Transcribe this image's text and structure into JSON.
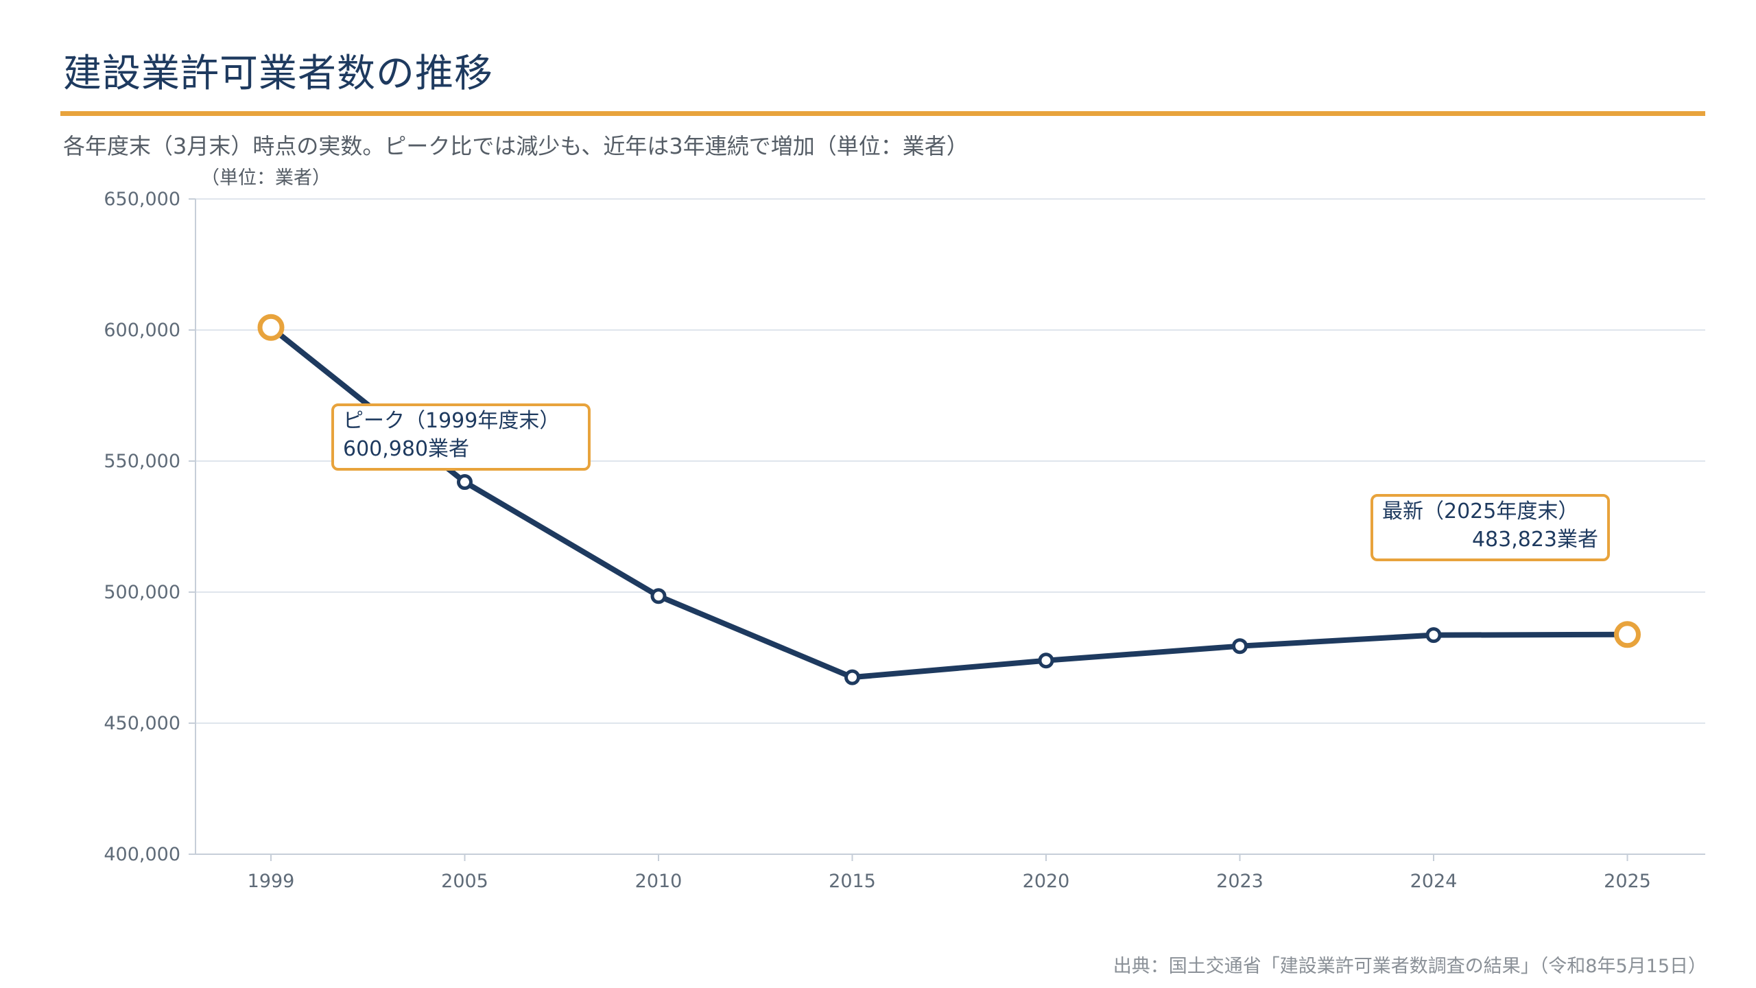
{
  "header": {
    "title": "建設業許可業者数の推移",
    "subtitle": "各年度末（3月末）時点の実数。ピーク比では減少も、近年は3年連続で増加（単位：業者）"
  },
  "footer": {
    "source": "出典：国土交通省「建設業許可業者数調査の結果」（令和8年5月15日）"
  },
  "colors": {
    "line": "#1e3a5f",
    "accent": "#e8a33c",
    "grid": "#dfe5ec",
    "axis": "#c6ced8"
  },
  "chart_data": {
    "type": "line",
    "title": "建設業許可業者数の推移",
    "subtitle": "各年度末（3月末）時点の実数。ピーク比では減少も、近年は3年連続で増加（単位：業者）",
    "ylabel": "（単位：業者）",
    "xlabel": "",
    "categories": [
      "1999",
      "2005",
      "2010",
      "2015",
      "2020",
      "2023",
      "2024",
      "2025"
    ],
    "series": [
      {
        "values": [
          600980,
          542000,
          498500,
          467500,
          473900,
          479400,
          483600,
          483823
        ]
      }
    ],
    "ylim": [
      400000,
      650000
    ],
    "yticks": [
      "400,000",
      "450,000",
      "500,000",
      "550,000",
      "600,000",
      "650,000"
    ],
    "ytick_values": [
      400000,
      450000,
      500000,
      550000,
      600000,
      650000
    ],
    "grid": true,
    "annotations": [
      {
        "point_index": 0,
        "line1": "ピーク（1999年度末）",
        "line2": "600,980業者",
        "align": "left"
      },
      {
        "point_index": 7,
        "line1": "最新（2025年度末）",
        "line2": "483,823業者",
        "align": "right"
      }
    ]
  }
}
